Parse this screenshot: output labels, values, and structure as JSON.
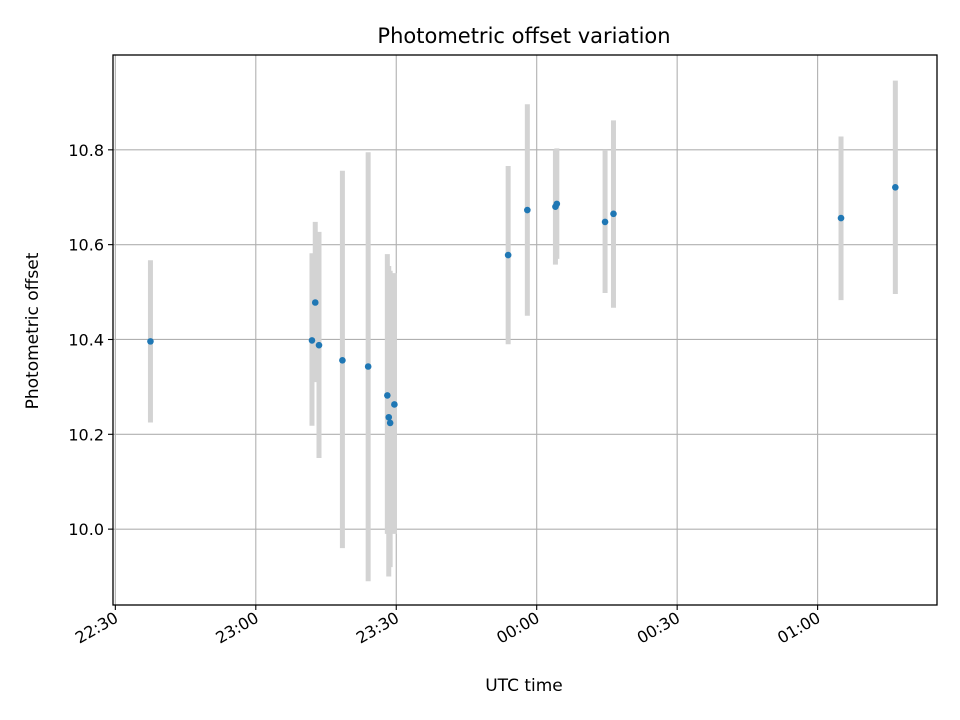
{
  "chart_data": {
    "type": "scatter",
    "title": "Photometric offset variation",
    "xlabel": "UTC time",
    "ylabel": "Photometric offset",
    "grid": true,
    "legend": "none",
    "x_unit": "minutes relative to 00:00 UTC",
    "xlim": [
      -90.5,
      85.5
    ],
    "ylim": [
      9.84,
      11.0
    ],
    "x_ticks": [
      {
        "value": -90,
        "label": "22:30"
      },
      {
        "value": -60,
        "label": "23:00"
      },
      {
        "value": -30,
        "label": "23:30"
      },
      {
        "value": 0,
        "label": "00:00"
      },
      {
        "value": 30,
        "label": "00:30"
      },
      {
        "value": 60,
        "label": "01:00"
      }
    ],
    "y_ticks": [
      {
        "value": 10.0,
        "label": "10.0"
      },
      {
        "value": 10.2,
        "label": "10.2"
      },
      {
        "value": 10.4,
        "label": "10.4"
      },
      {
        "value": 10.6,
        "label": "10.6"
      },
      {
        "value": 10.8,
        "label": "10.8"
      }
    ],
    "colors": {
      "point": "#1f77b4",
      "errorbar": "#d3d3d3",
      "grid": "#b0b0b0"
    },
    "points": [
      {
        "x": -82.5,
        "y": 10.396,
        "ylo": 10.225,
        "yhi": 10.567
      },
      {
        "x": -48.0,
        "y": 10.398,
        "ylo": 10.218,
        "yhi": 10.582
      },
      {
        "x": -47.3,
        "y": 10.478,
        "ylo": 10.31,
        "yhi": 10.648
      },
      {
        "x": -46.5,
        "y": 10.388,
        "ylo": 10.15,
        "yhi": 10.627
      },
      {
        "x": -41.5,
        "y": 10.356,
        "ylo": 9.96,
        "yhi": 10.756
      },
      {
        "x": -36.0,
        "y": 10.343,
        "ylo": 9.89,
        "yhi": 10.795
      },
      {
        "x": -31.9,
        "y": 10.282,
        "ylo": 9.99,
        "yhi": 10.58
      },
      {
        "x": -31.6,
        "y": 10.236,
        "ylo": 9.9,
        "yhi": 10.555
      },
      {
        "x": -31.3,
        "y": 10.224,
        "ylo": 9.92,
        "yhi": 10.545
      },
      {
        "x": -30.4,
        "y": 10.263,
        "ylo": 9.99,
        "yhi": 10.54
      },
      {
        "x": -6.1,
        "y": 10.578,
        "ylo": 10.39,
        "yhi": 10.766
      },
      {
        "x": -2.0,
        "y": 10.673,
        "ylo": 10.45,
        "yhi": 10.896
      },
      {
        "x": 4.0,
        "y": 10.68,
        "ylo": 10.558,
        "yhi": 10.8
      },
      {
        "x": 4.3,
        "y": 10.686,
        "ylo": 10.57,
        "yhi": 10.803
      },
      {
        "x": 14.6,
        "y": 10.648,
        "ylo": 10.498,
        "yhi": 10.8
      },
      {
        "x": 16.4,
        "y": 10.665,
        "ylo": 10.467,
        "yhi": 10.862
      },
      {
        "x": 65.0,
        "y": 10.656,
        "ylo": 10.483,
        "yhi": 10.828
      },
      {
        "x": 76.6,
        "y": 10.721,
        "ylo": 10.496,
        "yhi": 10.946
      }
    ]
  }
}
